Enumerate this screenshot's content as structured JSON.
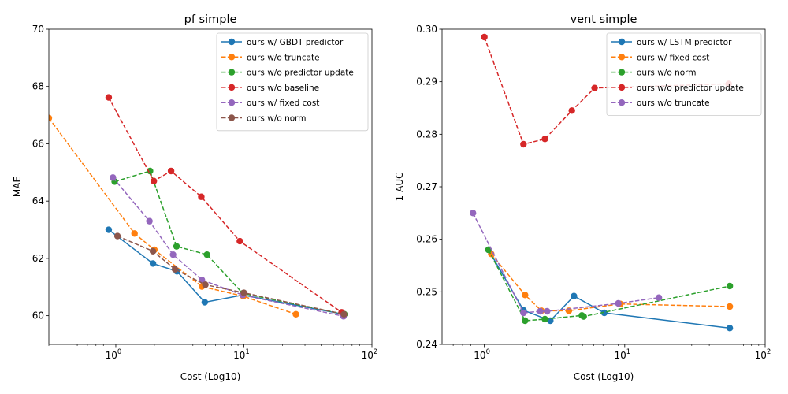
{
  "chart_data": [
    {
      "type": "line",
      "title": "pf simple",
      "xlabel": "Cost (Log10)",
      "ylabel": "MAE",
      "xscale": "log",
      "xlim": [
        0.3,
        100
      ],
      "ylim": [
        59,
        70
      ],
      "xticks": [
        {
          "value": 1,
          "base": "10",
          "exp": "0"
        },
        {
          "value": 10,
          "base": "10",
          "exp": "1"
        },
        {
          "value": 100,
          "base": "10",
          "exp": "2"
        }
      ],
      "yticks": [
        "60",
        "62",
        "64",
        "66",
        "68",
        "70"
      ],
      "legend_position": "top-right",
      "grid": false,
      "series": [
        {
          "name": "ours w/ GBDT predictor",
          "color": "#1f77b4",
          "linestyle": "solid",
          "x": [
            0.88,
            1.95,
            3.0,
            4.95,
            9.8,
            60.0
          ],
          "y": [
            63.0,
            61.82,
            61.55,
            60.47,
            60.72,
            60.05
          ]
        },
        {
          "name": "ours w/o truncate",
          "color": "#ff7f0e",
          "linestyle": "dashed",
          "x": [
            0.3,
            1.4,
            2.0,
            4.7,
            9.9,
            25.5
          ],
          "y": [
            66.9,
            62.87,
            62.3,
            61.02,
            60.68,
            60.05
          ]
        },
        {
          "name": "ours w/o predictor update",
          "color": "#2ca02c",
          "linestyle": "dashed",
          "x": [
            0.98,
            1.85,
            2.98,
            5.15,
            9.8,
            61.0
          ],
          "y": [
            64.68,
            65.05,
            62.42,
            62.13,
            60.78,
            60.05
          ]
        },
        {
          "name": "ours w/o baseline",
          "color": "#d62728",
          "linestyle": "dashed",
          "x": [
            0.88,
            1.98,
            2.7,
            4.65,
            9.3,
            58.0
          ],
          "y": [
            67.62,
            64.7,
            65.05,
            64.15,
            62.6,
            60.12
          ]
        },
        {
          "name": "ours w/ fixed cost",
          "color": "#9467bd",
          "linestyle": "dashed",
          "x": [
            0.95,
            1.83,
            2.8,
            4.7,
            9.8,
            60.0
          ],
          "y": [
            64.82,
            63.3,
            62.13,
            61.25,
            60.72,
            59.98
          ]
        },
        {
          "name": "ours w/o norm",
          "color": "#8c564b",
          "linestyle": "dashed",
          "x": [
            1.03,
            1.95,
            2.9,
            5.0,
            10.0,
            60.5
          ],
          "y": [
            62.78,
            62.25,
            61.62,
            61.08,
            60.8,
            60.05
          ]
        }
      ]
    },
    {
      "type": "line",
      "title": "vent simple",
      "xlabel": "Cost (Log10)",
      "ylabel": "1-AUC",
      "xscale": "log",
      "xlim": [
        0.5,
        100
      ],
      "ylim": [
        0.24,
        0.3
      ],
      "xticks": [
        {
          "value": 1,
          "base": "10",
          "exp": "0"
        },
        {
          "value": 10,
          "base": "10",
          "exp": "1"
        },
        {
          "value": 100,
          "base": "10",
          "exp": "2"
        }
      ],
      "yticks": [
        "0.24",
        "0.25",
        "0.26",
        "0.27",
        "0.28",
        "0.29",
        "0.30"
      ],
      "legend_position": "top-right",
      "grid": false,
      "series": [
        {
          "name": "ours w/ LSTM predictor",
          "color": "#1f77b4",
          "linestyle": "solid",
          "x": [
            1.07,
            1.9,
            2.95,
            4.35,
            7.15,
            56.0
          ],
          "y": [
            0.258,
            0.2465,
            0.2445,
            0.2492,
            0.246,
            0.2431
          ]
        },
        {
          "name": "ours w/ fixed cost",
          "color": "#ff7f0e",
          "linestyle": "dashed",
          "x": [
            1.12,
            1.95,
            2.55,
            4.0,
            9.3,
            56.0
          ],
          "y": [
            0.2572,
            0.2494,
            0.2464,
            0.2464,
            0.2477,
            0.2472
          ]
        },
        {
          "name": "ours w/o norm",
          "color": "#2ca02c",
          "linestyle": "dashed",
          "x": [
            1.07,
            1.95,
            2.7,
            4.95,
            5.1,
            56.0
          ],
          "y": [
            0.258,
            0.2445,
            0.2448,
            0.2455,
            0.2453,
            0.2511
          ]
        },
        {
          "name": "ours w/o predictor update",
          "color": "#d62728",
          "linestyle": "dashed",
          "x": [
            1.0,
            1.9,
            2.7,
            4.2,
            6.1,
            55.0
          ],
          "y": [
            0.2985,
            0.2781,
            0.2791,
            0.2845,
            0.2888,
            0.2896
          ]
        },
        {
          "name": "ours w/o truncate",
          "color": "#9467bd",
          "linestyle": "dashed",
          "x": [
            0.83,
            1.9,
            2.5,
            2.8,
            9.0,
            17.5
          ],
          "y": [
            0.265,
            0.246,
            0.2463,
            0.2463,
            0.2478,
            0.2489
          ]
        }
      ]
    }
  ]
}
